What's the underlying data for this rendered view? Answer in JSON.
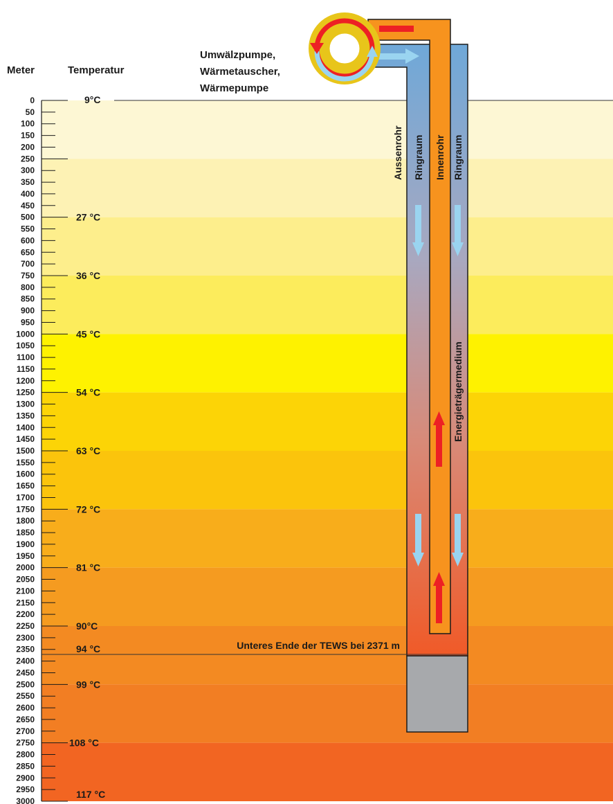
{
  "headers": {
    "meter": "Meter",
    "temperatur": "Temperatur"
  },
  "pump_label_lines": [
    "Umwälzpumpe,",
    "Wärmetauscher,",
    "Wärmepumpe"
  ],
  "depth_scale": {
    "min": 0,
    "max": 3000,
    "step": 50,
    "labels": [
      "0",
      "50",
      "100",
      "150",
      "200",
      "250",
      "300",
      "350",
      "400",
      "450",
      "500",
      "550",
      "600",
      "650",
      "700",
      "750",
      "800",
      "850",
      "900",
      "950",
      "1000",
      "1050",
      "1100",
      "1150",
      "1200",
      "1250",
      "1300",
      "1350",
      "1400",
      "1450",
      "1500",
      "1550",
      "1600",
      "1650",
      "1700",
      "1750",
      "1800",
      "1850",
      "1900",
      "1950",
      "2000",
      "2050",
      "2100",
      "2150",
      "2200",
      "2250",
      "2300",
      "2350",
      "2400",
      "2450",
      "2500",
      "2550",
      "2600",
      "2650",
      "2700",
      "2750",
      "2800",
      "2850",
      "2900",
      "2950",
      "3000"
    ]
  },
  "temperature_markers": [
    {
      "depth": 0,
      "label": "9°C"
    },
    {
      "depth": 500,
      "label": "27 °C"
    },
    {
      "depth": 750,
      "label": "36 °C"
    },
    {
      "depth": 1000,
      "label": "45 °C"
    },
    {
      "depth": 1250,
      "label": "54 °C"
    },
    {
      "depth": 1500,
      "label": "63 °C"
    },
    {
      "depth": 1750,
      "label": "72 °C"
    },
    {
      "depth": 2000,
      "label": "81 °C"
    },
    {
      "depth": 2250,
      "label": "90°C"
    },
    {
      "depth": 2371,
      "label": "94 °C"
    },
    {
      "depth": 2500,
      "label": "99 °C"
    },
    {
      "depth": 2750,
      "label": "108 °C"
    },
    {
      "depth": 3000,
      "label": "117 °C"
    }
  ],
  "layers": [
    {
      "from": 0,
      "to": 250,
      "color": "#fdf7d4"
    },
    {
      "from": 250,
      "to": 500,
      "color": "#fdf2b4"
    },
    {
      "from": 500,
      "to": 750,
      "color": "#fdee8c"
    },
    {
      "from": 750,
      "to": 1000,
      "color": "#fcec5c"
    },
    {
      "from": 1000,
      "to": 1250,
      "color": "#fef200"
    },
    {
      "from": 1250,
      "to": 1500,
      "color": "#fcd406"
    },
    {
      "from": 1500,
      "to": 1750,
      "color": "#fbc40c"
    },
    {
      "from": 1750,
      "to": 2000,
      "color": "#f8ad1b"
    },
    {
      "from": 2000,
      "to": 2250,
      "color": "#f59b20"
    },
    {
      "from": 2250,
      "to": 2500,
      "color": "#f38a22"
    },
    {
      "from": 2500,
      "to": 2750,
      "color": "#f27e23"
    },
    {
      "from": 2750,
      "to": 3000,
      "color": "#f26522"
    }
  ],
  "pipe_labels": {
    "aussenrohr": "Aussenrohr",
    "ringraum_left": "Ringraum",
    "innenrohr": "Innenrohr",
    "ringraum_right": "Ringraum",
    "medium": "Energieträgermedium"
  },
  "tews": {
    "depth": 2371,
    "bottom_depth": 2700,
    "label": "Unteres Ende der TEWS bei 2371 m"
  },
  "colors": {
    "cold_flow": "#9ad4f0",
    "hot_flow": "#ed2024",
    "inner_pipe": "#f7931e",
    "ring_top": "#6fa8d8",
    "ring_bottom": "#f05a28",
    "casing_bottom": "#a7a9ac",
    "pump_ring": "#e8c51a"
  }
}
